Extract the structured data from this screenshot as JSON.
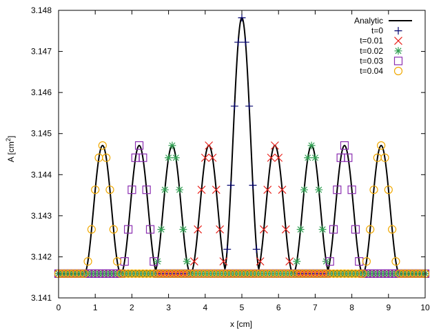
{
  "chart_data": {
    "type": "scatter",
    "title": "",
    "xlabel": "x [cm]",
    "ylabel_main": "A [cm",
    "ylabel_sup": "2",
    "ylabel_close": "]",
    "xlim": [
      0,
      10
    ],
    "ylim": [
      3.141,
      3.148
    ],
    "xticks": [
      0,
      1,
      2,
      3,
      4,
      5,
      6,
      7,
      8,
      9,
      10
    ],
    "xtick_labels": [
      "0",
      "1",
      "2",
      "3",
      "4",
      "5",
      "6",
      "7",
      "8",
      "9",
      "10"
    ],
    "yticks": [
      3.141,
      3.142,
      3.143,
      3.144,
      3.145,
      3.146,
      3.147,
      3.148
    ],
    "ytick_labels": [
      "3.141",
      "3.142",
      "3.143",
      "3.144",
      "3.145",
      "3.146",
      "3.147",
      "3.148"
    ],
    "grid": false,
    "legend_position": "top-right",
    "baseline": 3.14159,
    "analytic": {
      "name": "Analytic",
      "color": "#000000",
      "peaks": [
        {
          "center": 5.0,
          "half_width": 0.5,
          "amplitude": 0.00623
        },
        {
          "center": 4.1,
          "half_width": 0.5,
          "amplitude": 0.00312
        },
        {
          "center": 5.9,
          "half_width": 0.5,
          "amplitude": 0.00312
        },
        {
          "center": 3.1,
          "half_width": 0.5,
          "amplitude": 0.00312
        },
        {
          "center": 6.9,
          "half_width": 0.5,
          "amplitude": 0.00312
        },
        {
          "center": 2.2,
          "half_width": 0.5,
          "amplitude": 0.00312
        },
        {
          "center": 7.8,
          "half_width": 0.5,
          "amplitude": 0.00312
        },
        {
          "center": 1.2,
          "half_width": 0.5,
          "amplitude": 0.00312
        },
        {
          "center": 8.8,
          "half_width": 0.5,
          "amplitude": 0.00312
        }
      ]
    },
    "series": [
      {
        "name": "t=0",
        "marker": "plus",
        "color": "#00006e",
        "peaks": [
          5.0
        ]
      },
      {
        "name": "t=0.01",
        "marker": "cross",
        "color": "#e8201a",
        "peaks": [
          4.1,
          5.9
        ]
      },
      {
        "name": "t=0.02",
        "marker": "star",
        "color": "#2e9e50",
        "peaks": [
          3.1,
          6.9
        ]
      },
      {
        "name": "t=0.03",
        "marker": "square",
        "color": "#8a2cb0",
        "peaks": [
          2.2,
          7.8
        ]
      },
      {
        "name": "t=0.04",
        "marker": "circle",
        "color": "#f0a800",
        "peaks": [
          1.2,
          8.8
        ]
      }
    ]
  }
}
